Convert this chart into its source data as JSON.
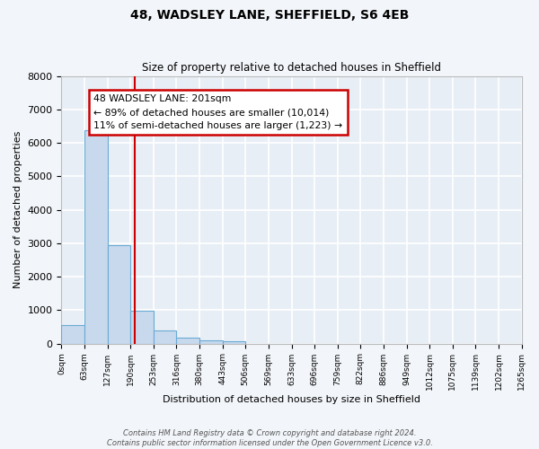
{
  "title": "48, WADSLEY LANE, SHEFFIELD, S6 4EB",
  "subtitle": "Size of property relative to detached houses in Sheffield",
  "xlabel": "Distribution of detached houses by size in Sheffield",
  "ylabel": "Number of detached properties",
  "bar_color": "#c8d9ed",
  "bar_edge_color": "#6aaad4",
  "background_color": "#e8eef5",
  "fig_background_color": "#f2f5f9",
  "grid_color": "#ffffff",
  "vline_x": 201,
  "vline_color": "#cc0000",
  "annotation_text": "48 WADSLEY LANE: 201sqm\n← 89% of detached houses are smaller (10,014)\n11% of semi-detached houses are larger (1,223) →",
  "annotation_box_color": "#ffffff",
  "annotation_box_edge": "#cc0000",
  "bin_edges": [
    0,
    63,
    127,
    190,
    253,
    316,
    380,
    443,
    506,
    569,
    633,
    696,
    759,
    822,
    886,
    949,
    1012,
    1075,
    1139,
    1202,
    1265
  ],
  "bin_counts": [
    550,
    6380,
    2950,
    990,
    390,
    165,
    100,
    65,
    0,
    0,
    0,
    0,
    0,
    0,
    0,
    0,
    0,
    0,
    0,
    0
  ],
  "ylim": [
    0,
    8000
  ],
  "yticks": [
    0,
    1000,
    2000,
    3000,
    4000,
    5000,
    6000,
    7000,
    8000
  ],
  "tick_labels": [
    "0sqm",
    "63sqm",
    "127sqm",
    "190sqm",
    "253sqm",
    "316sqm",
    "380sqm",
    "443sqm",
    "506sqm",
    "569sqm",
    "633sqm",
    "696sqm",
    "759sqm",
    "822sqm",
    "886sqm",
    "949sqm",
    "1012sqm",
    "1075sqm",
    "1139sqm",
    "1202sqm",
    "1265sqm"
  ],
  "footer_line1": "Contains HM Land Registry data © Crown copyright and database right 2024.",
  "footer_line2": "Contains public sector information licensed under the Open Government Licence v3.0."
}
